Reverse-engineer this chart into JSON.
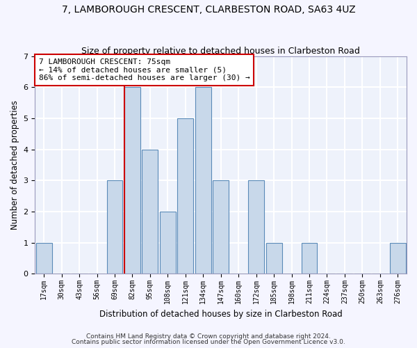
{
  "title": "7, LAMBOROUGH CRESCENT, CLARBESTON ROAD, SA63 4UZ",
  "subtitle": "Size of property relative to detached houses in Clarbeston Road",
  "xlabel": "Distribution of detached houses by size in Clarbeston Road",
  "ylabel": "Number of detached properties",
  "bins": [
    "17sqm",
    "30sqm",
    "43sqm",
    "56sqm",
    "69sqm",
    "82sqm",
    "95sqm",
    "108sqm",
    "121sqm",
    "134sqm",
    "147sqm",
    "160sqm",
    "172sqm",
    "185sqm",
    "198sqm",
    "211sqm",
    "224sqm",
    "237sqm",
    "250sqm",
    "263sqm",
    "276sqm"
  ],
  "values": [
    1,
    0,
    0,
    0,
    3,
    6,
    4,
    2,
    5,
    6,
    3,
    0,
    3,
    1,
    0,
    1,
    0,
    0,
    0,
    0,
    1
  ],
  "bar_color": "#c8d8ea",
  "bar_edge_color": "#5a8ab8",
  "subject_line_color": "#cc0000",
  "annotation_text": "7 LAMBOROUGH CRESCENT: 75sqm\n← 14% of detached houses are smaller (5)\n86% of semi-detached houses are larger (30) →",
  "annotation_box_color": "#ffffff",
  "annotation_box_edge": "#cc0000",
  "ylim": [
    0,
    7
  ],
  "yticks": [
    0,
    1,
    2,
    3,
    4,
    5,
    6,
    7
  ],
  "bg_color": "#eef2fb",
  "grid_color": "#ffffff",
  "footer1": "Contains HM Land Registry data © Crown copyright and database right 2024.",
  "footer2": "Contains public sector information licensed under the Open Government Licence v3.0.",
  "title_fontsize": 10,
  "subtitle_fontsize": 9,
  "axis_label_fontsize": 8.5,
  "tick_fontsize": 7,
  "annotation_fontsize": 8,
  "footer_fontsize": 6.5
}
